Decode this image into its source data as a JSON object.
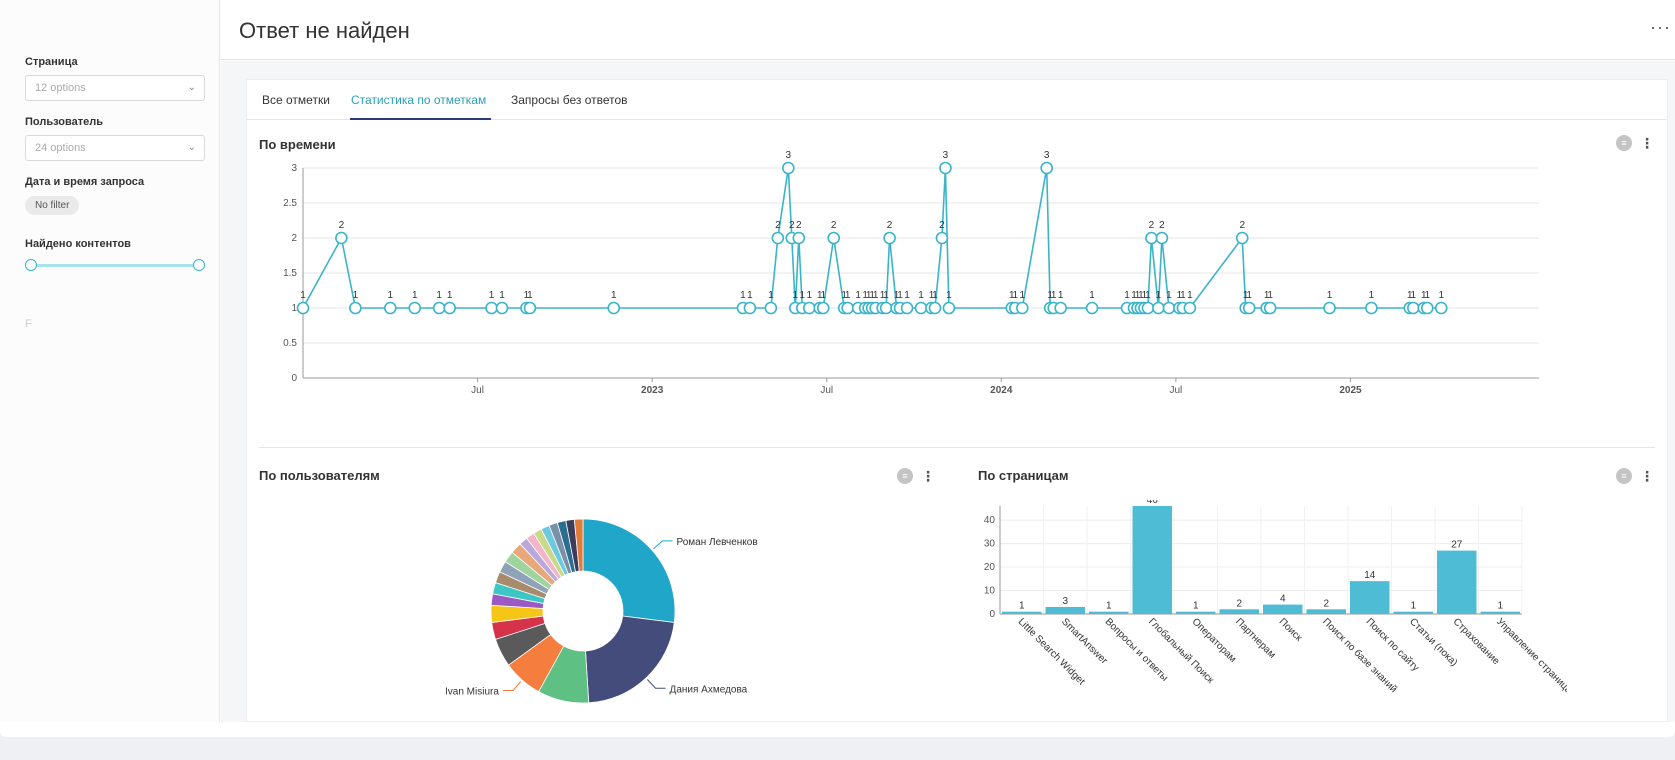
{
  "sidebar": {
    "filters": [
      {
        "label": "Страница",
        "type": "select",
        "placeholder": "12 options"
      },
      {
        "label": "Пользователь",
        "type": "select",
        "placeholder": "24 options"
      },
      {
        "label": "Дата и время запроса",
        "type": "chip",
        "value": "No filter"
      },
      {
        "label": "Найдено контентов",
        "type": "range"
      }
    ],
    "footer_letter": "F"
  },
  "header": {
    "title": "Ответ не найден",
    "more_label": "···"
  },
  "tabs": [
    {
      "label": "Все отметки",
      "active": false
    },
    {
      "label": "Статистика по отметкам",
      "active": true
    },
    {
      "label": "Запросы без ответов",
      "active": false
    }
  ],
  "cards": {
    "time": {
      "title": "По времени"
    },
    "users": {
      "title": "По пользователям"
    },
    "pages": {
      "title": "По страницам"
    }
  },
  "colors": {
    "accent": "#2a9fb8",
    "line": "#3ab4c8",
    "bar": "#4fbcd6"
  },
  "chart_data": [
    {
      "type": "line",
      "title": "По времени",
      "ylim": [
        0,
        3
      ],
      "yticks": [
        0,
        0.5,
        1,
        1.5,
        2,
        2.5,
        3
      ],
      "xlim": [
        2022.0,
        2025.54
      ],
      "xticks": [
        {
          "x": 2022.5,
          "label": "Jul",
          "bold": false
        },
        {
          "x": 2023.0,
          "label": "2023",
          "bold": true
        },
        {
          "x": 2023.5,
          "label": "Jul",
          "bold": false
        },
        {
          "x": 2024.0,
          "label": "2024",
          "bold": true
        },
        {
          "x": 2024.5,
          "label": "Jul",
          "bold": false
        },
        {
          "x": 2025.0,
          "label": "2025",
          "bold": true
        }
      ],
      "x": [
        2022.0,
        2022.11,
        2022.15,
        2022.25,
        2022.32,
        2022.39,
        2022.42,
        2022.54,
        2022.57,
        2022.64,
        2022.65,
        2022.89,
        2023.26,
        2023.28,
        2023.34,
        2023.36,
        2023.39,
        2023.4,
        2023.41,
        2023.42,
        2023.43,
        2023.45,
        2023.48,
        2023.49,
        2023.52,
        2023.55,
        2023.56,
        2023.59,
        2023.61,
        2023.62,
        2023.63,
        2023.64,
        2023.66,
        2023.67,
        2023.68,
        2023.7,
        2023.71,
        2023.73,
        2023.77,
        2023.8,
        2023.81,
        2023.83,
        2023.84,
        2023.85,
        2024.03,
        2024.04,
        2024.06,
        2024.13,
        2024.14,
        2024.15,
        2024.17,
        2024.26,
        2024.36,
        2024.38,
        2024.39,
        2024.4,
        2024.41,
        2024.42,
        2024.43,
        2024.45,
        2024.46,
        2024.48,
        2024.51,
        2024.52,
        2024.54,
        2024.69,
        2024.7,
        2024.71,
        2024.76,
        2024.77,
        2024.94,
        2025.06,
        2025.17,
        2025.18,
        2025.21,
        2025.22,
        2025.26
      ],
      "values": [
        1,
        2,
        1,
        1,
        1,
        1,
        1,
        1,
        1,
        1,
        1,
        1,
        1,
        1,
        1,
        2,
        3,
        2,
        1,
        2,
        1,
        1,
        1,
        1,
        2,
        1,
        1,
        1,
        1,
        1,
        1,
        1,
        1,
        1,
        2,
        1,
        1,
        1,
        1,
        1,
        1,
        2,
        3,
        1,
        1,
        1,
        1,
        3,
        1,
        1,
        1,
        1,
        1,
        1,
        1,
        1,
        1,
        1,
        2,
        1,
        2,
        1,
        1,
        1,
        1,
        2,
        1,
        1,
        1,
        1,
        1,
        1,
        1,
        1,
        1,
        1,
        1
      ]
    },
    {
      "type": "pie",
      "title": "По пользователям",
      "labeled": [
        "Роман Левченков",
        "Дания Ахмедова",
        "Ivan Misiura"
      ],
      "slices": [
        {
          "label": "Роман Левченков",
          "value": 27,
          "color": "#1fa6c9"
        },
        {
          "label": "Дания Ахмедова",
          "value": 22,
          "color": "#444c7c"
        },
        {
          "label": "",
          "value": 9,
          "color": "#5fc084"
        },
        {
          "label": "Ivan Misiura",
          "value": 7,
          "color": "#f57e3e"
        },
        {
          "label": "",
          "value": 5,
          "color": "#5a5a5a"
        },
        {
          "label": "",
          "value": 3,
          "color": "#d6334b"
        },
        {
          "label": "",
          "value": 3,
          "color": "#f5c518"
        },
        {
          "label": "",
          "value": 2,
          "color": "#9b59c4"
        },
        {
          "label": "",
          "value": 2,
          "color": "#3cc6c6"
        },
        {
          "label": "",
          "value": 2,
          "color": "#a78b6c"
        },
        {
          "label": "",
          "value": 2,
          "color": "#8fa3b8"
        },
        {
          "label": "",
          "value": 2,
          "color": "#9ed49e"
        },
        {
          "label": "",
          "value": 2,
          "color": "#e8a87c"
        },
        {
          "label": "",
          "value": 1.5,
          "color": "#b9a8d9"
        },
        {
          "label": "",
          "value": 1.5,
          "color": "#f3b6c8"
        },
        {
          "label": "",
          "value": 1.5,
          "color": "#c9d98a"
        },
        {
          "label": "",
          "value": 1.5,
          "color": "#6cc9e0"
        },
        {
          "label": "",
          "value": 1.5,
          "color": "#7a8fa8"
        },
        {
          "label": "",
          "value": 1.5,
          "color": "#2a6f8f"
        },
        {
          "label": "",
          "value": 1.5,
          "color": "#3c3c5c"
        },
        {
          "label": "",
          "value": 1.5,
          "color": "#e07b39"
        }
      ]
    },
    {
      "type": "bar",
      "title": "По страницам",
      "ylim": [
        0,
        46
      ],
      "yticks": [
        0,
        10,
        20,
        30,
        40
      ],
      "categories": [
        "Little Search Widget",
        "SmartAnswer",
        "Вопросы и ответы",
        "Глобальный Поиск",
        "Операторам",
        "Партнерам",
        "Поиск",
        "Поиск по базе знаний",
        "Поиск по сайту",
        "Статьи (пока)",
        "Страхование",
        "Управление страницами"
      ],
      "values": [
        1,
        3,
        1,
        46,
        1,
        2,
        4,
        2,
        14,
        1,
        27,
        1
      ]
    }
  ]
}
